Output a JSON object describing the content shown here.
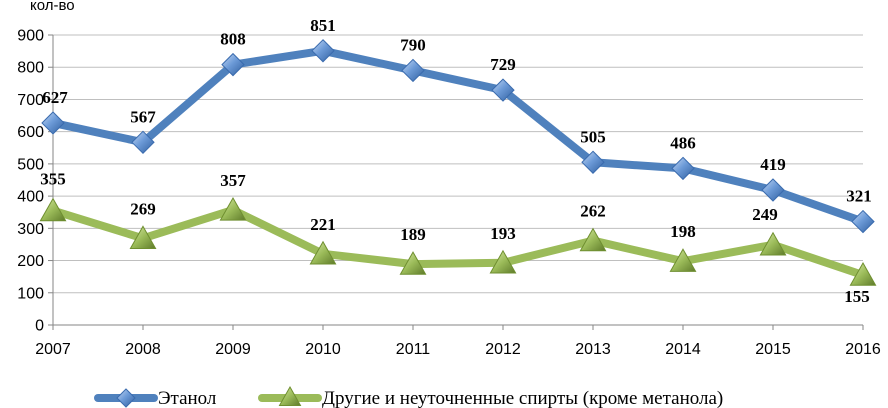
{
  "chart_data": {
    "type": "line",
    "ylabel": "кол-во",
    "x": [
      "2007",
      "2008",
      "2009",
      "2010",
      "2011",
      "2012",
      "2013",
      "2014",
      "2015",
      "2016"
    ],
    "ylim": [
      0,
      900
    ],
    "yticks": [
      0,
      100,
      200,
      300,
      400,
      500,
      600,
      700,
      800,
      900
    ],
    "grid": true,
    "legend_position": "bottom",
    "series": [
      {
        "name": "Этанол",
        "color": "#4F81BD",
        "marker": "diamond",
        "values": [
          627,
          567,
          808,
          851,
          790,
          729,
          505,
          486,
          419,
          321
        ]
      },
      {
        "name": "Другие и неуточненные спирты (кроме метанола)",
        "color": "#9BBB59",
        "marker": "triangle",
        "values": [
          355,
          269,
          357,
          221,
          189,
          193,
          262,
          198,
          249,
          155
        ]
      }
    ]
  }
}
